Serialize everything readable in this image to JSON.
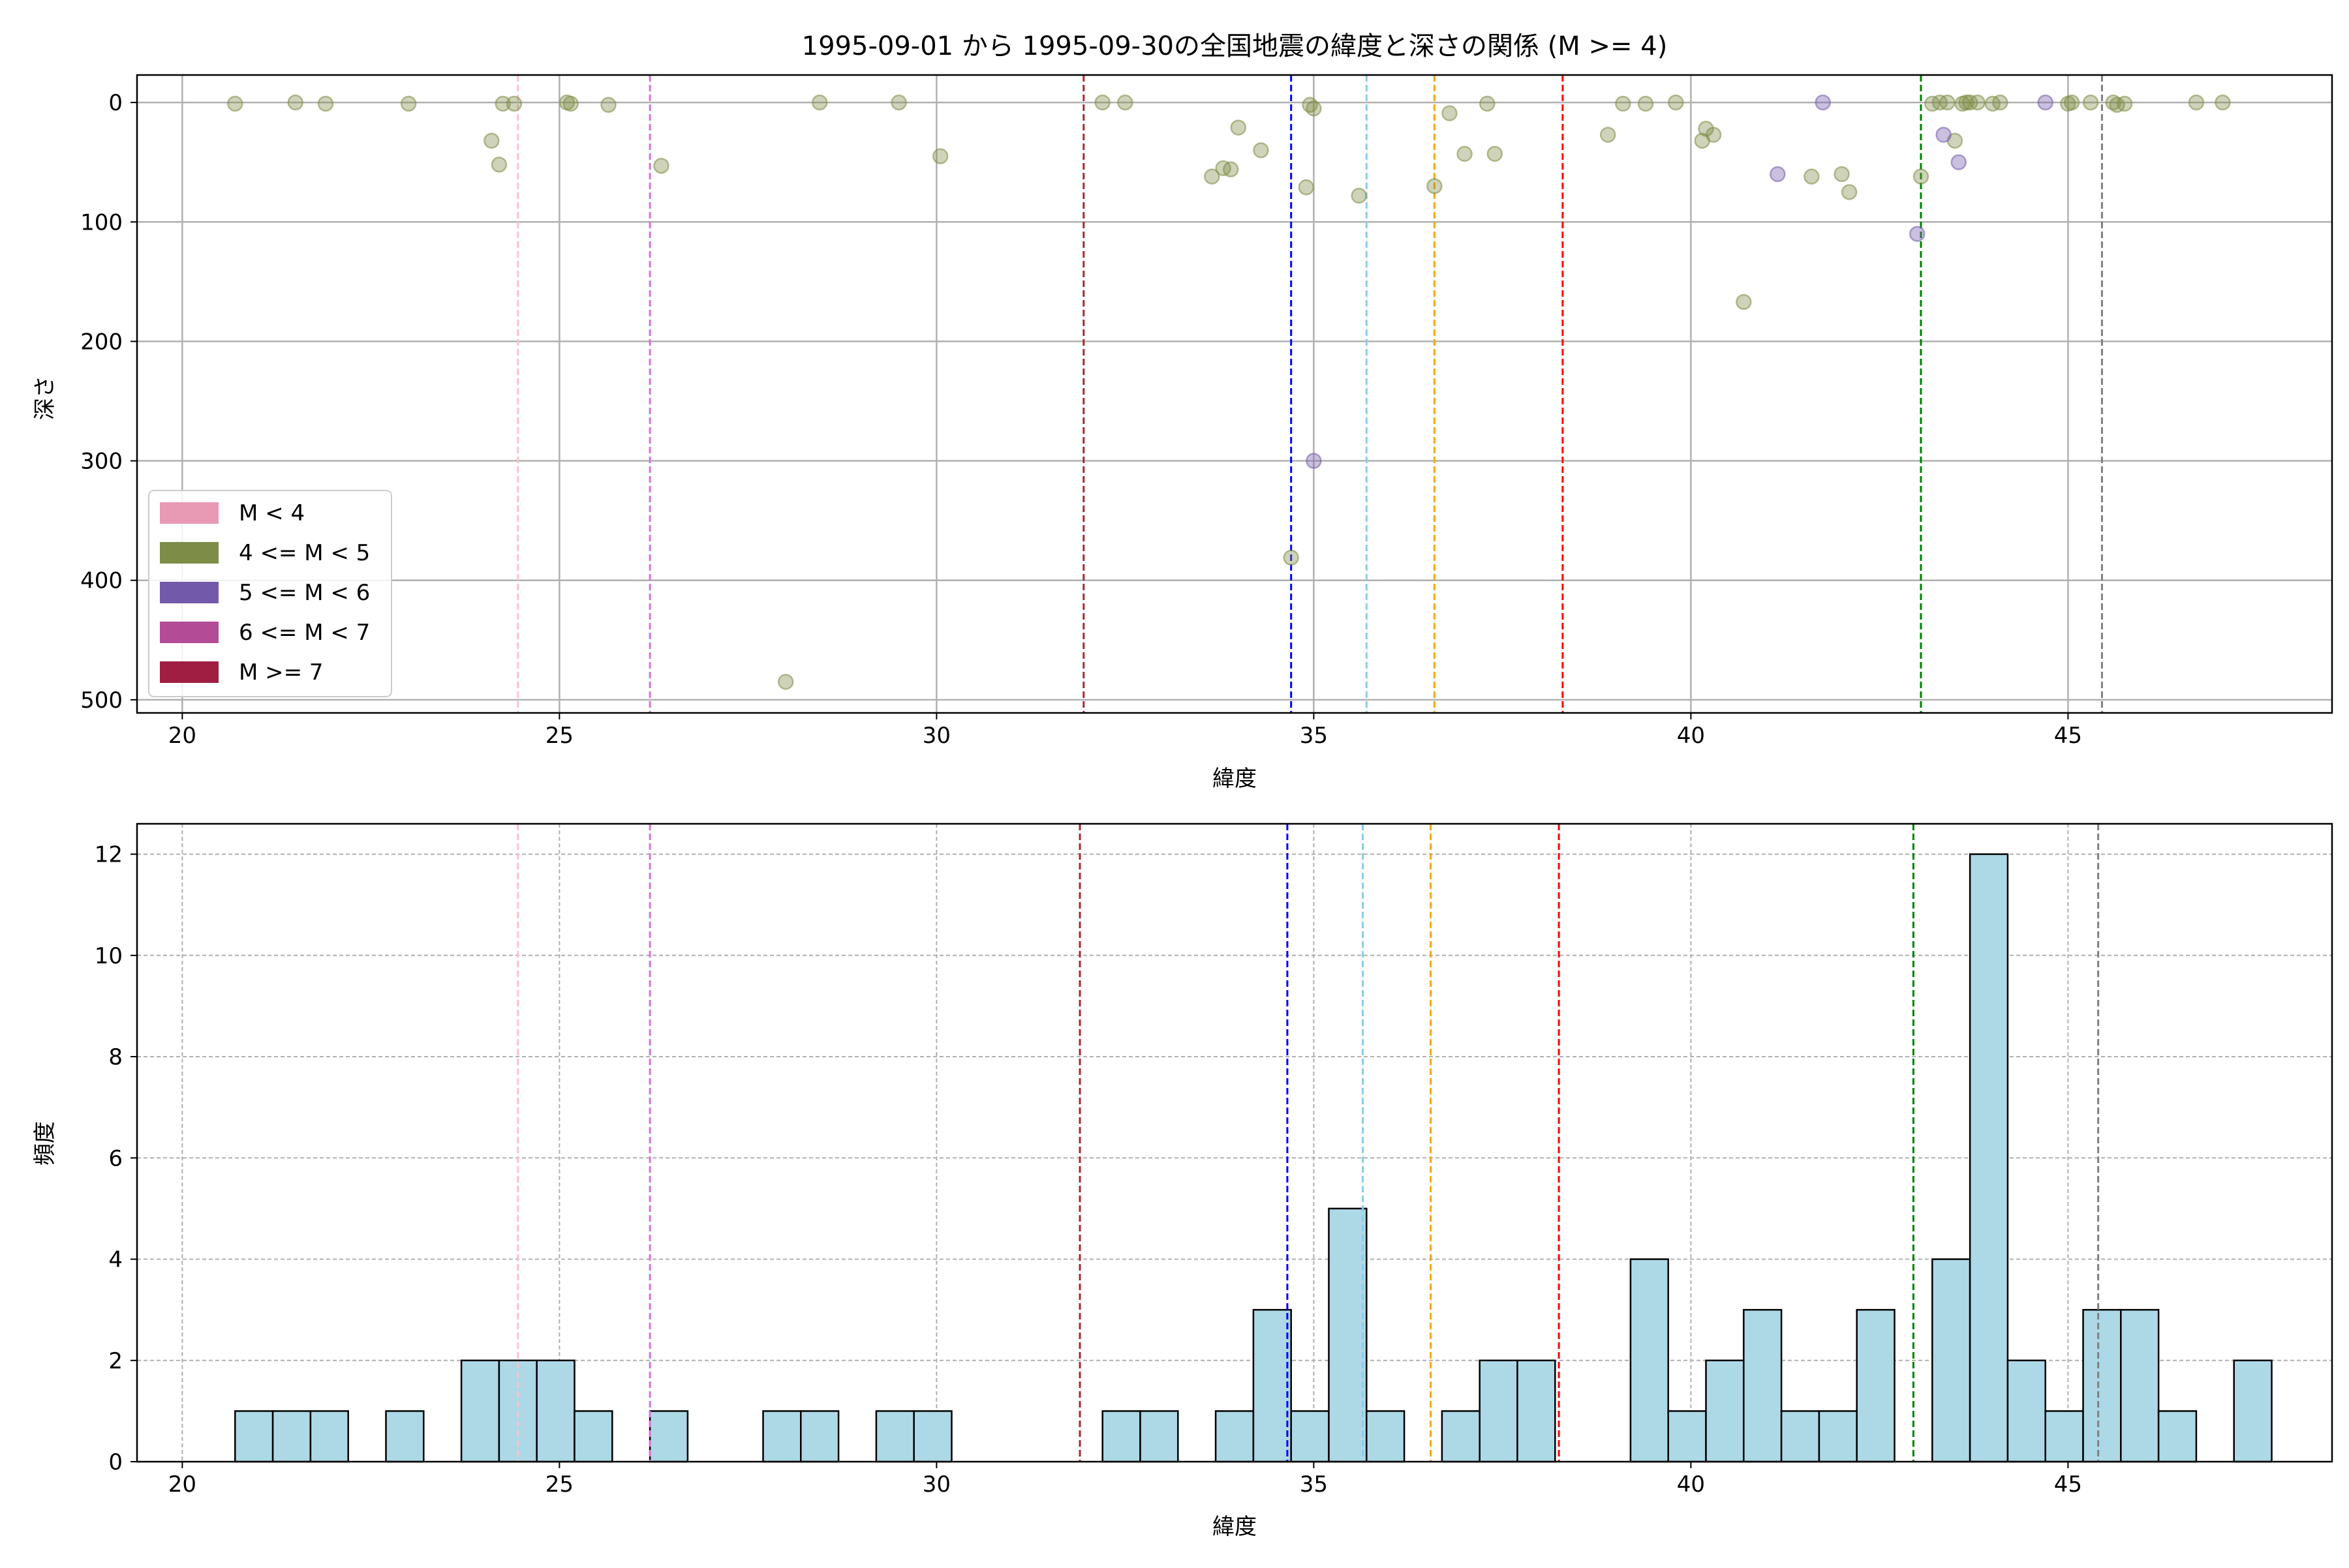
{
  "chart_data": [
    {
      "type": "scatter",
      "title": "1995-09-01 から 1995-09-30の全国地震の緯度と深さの関係 (M >= 4)",
      "xlabel": "緯度",
      "ylabel": "深さ",
      "xlim": [
        19.4,
        48.5
      ],
      "ylim": [
        511,
        -23
      ],
      "y_inverted": true,
      "xticks": [
        20,
        25,
        30,
        35,
        40,
        45
      ],
      "yticks": [
        0,
        100,
        200,
        300,
        400,
        500
      ],
      "grid": true,
      "legend_position": "lower-left",
      "legend": [
        {
          "label": "M < 4",
          "color": "#e899b4"
        },
        {
          "label": "4 <= M < 5",
          "color": "#7d8c46"
        },
        {
          "label": "5 <= M < 6",
          "color": "#7359aa"
        },
        {
          "label": "6 <= M < 7",
          "color": "#b44b96"
        },
        {
          "label": "M >= 7",
          "color": "#a01e41"
        }
      ],
      "vlines": [
        {
          "x": 24.45,
          "color": "pink"
        },
        {
          "x": 26.2,
          "color": "orchid"
        },
        {
          "x": 31.95,
          "color": "brown"
        },
        {
          "x": 34.7,
          "color": "blue"
        },
        {
          "x": 35.7,
          "color": "skyblue"
        },
        {
          "x": 36.6,
          "color": "orange"
        },
        {
          "x": 38.3,
          "color": "red"
        },
        {
          "x": 43.05,
          "color": "green"
        },
        {
          "x": 45.45,
          "color": "gray"
        }
      ],
      "series": [
        {
          "name": "4 <= M < 5",
          "color": "#7d8c46",
          "points": [
            [
              20.7,
              1
            ],
            [
              21.5,
              0
            ],
            [
              21.9,
              1
            ],
            [
              23.0,
              1
            ],
            [
              24.1,
              32
            ],
            [
              24.2,
              52
            ],
            [
              24.25,
              1
            ],
            [
              24.4,
              1
            ],
            [
              25.1,
              0
            ],
            [
              25.15,
              1
            ],
            [
              25.65,
              2
            ],
            [
              26.35,
              53
            ],
            [
              28.0,
              485
            ],
            [
              28.45,
              0
            ],
            [
              29.5,
              0
            ],
            [
              30.05,
              45
            ],
            [
              32.2,
              0
            ],
            [
              32.5,
              0
            ],
            [
              33.65,
              62
            ],
            [
              33.8,
              55
            ],
            [
              33.9,
              56
            ],
            [
              34.0,
              21
            ],
            [
              34.3,
              40
            ],
            [
              34.7,
              381
            ],
            [
              34.9,
              71
            ],
            [
              34.95,
              2
            ],
            [
              35.0,
              5
            ],
            [
              35.6,
              78
            ],
            [
              36.6,
              70
            ],
            [
              36.8,
              9
            ],
            [
              37.0,
              43
            ],
            [
              37.3,
              1
            ],
            [
              37.4,
              43
            ],
            [
              38.9,
              27
            ],
            [
              39.1,
              1
            ],
            [
              39.4,
              1
            ],
            [
              39.8,
              0
            ],
            [
              40.15,
              32
            ],
            [
              40.2,
              22
            ],
            [
              40.3,
              27
            ],
            [
              40.7,
              167
            ],
            [
              41.6,
              62
            ],
            [
              42.0,
              60
            ],
            [
              42.1,
              75
            ],
            [
              43.05,
              62
            ],
            [
              43.2,
              1
            ],
            [
              43.3,
              0
            ],
            [
              43.4,
              0
            ],
            [
              43.5,
              32
            ],
            [
              43.6,
              1
            ],
            [
              43.65,
              0
            ],
            [
              43.7,
              0
            ],
            [
              43.8,
              0
            ],
            [
              44.0,
              1
            ],
            [
              44.1,
              0
            ],
            [
              45.0,
              1
            ],
            [
              45.05,
              0
            ],
            [
              45.3,
              0
            ],
            [
              45.6,
              0
            ],
            [
              45.65,
              2
            ],
            [
              45.75,
              1
            ],
            [
              46.7,
              0
            ],
            [
              47.05,
              0
            ]
          ]
        },
        {
          "name": "5 <= M < 6",
          "color": "#7359aa",
          "points": [
            [
              35.0,
              300
            ],
            [
              41.15,
              60
            ],
            [
              41.75,
              0
            ],
            [
              43.0,
              110
            ],
            [
              43.35,
              27
            ],
            [
              43.55,
              50
            ],
            [
              44.7,
              0
            ]
          ]
        }
      ]
    },
    {
      "type": "bar",
      "subtype": "histogram",
      "xlabel": "緯度",
      "ylabel": "頻度",
      "xlim": [
        19.4,
        48.5
      ],
      "ylim": [
        0,
        12.6
      ],
      "xticks": [
        20,
        25,
        30,
        35,
        40,
        45
      ],
      "yticks": [
        0,
        2,
        4,
        6,
        8,
        10,
        12
      ],
      "grid": true,
      "bar_color": "#add8e6",
      "bin_start": 20.7,
      "bin_width": 0.5,
      "values": [
        1,
        1,
        1,
        0,
        1,
        0,
        2,
        2,
        2,
        1,
        0,
        1,
        0,
        0,
        1,
        1,
        0,
        1,
        1,
        0,
        0,
        0,
        0,
        1,
        1,
        0,
        1,
        3,
        1,
        5,
        1,
        0,
        1,
        2,
        2,
        0,
        0,
        4,
        1,
        2,
        3,
        1,
        1,
        3,
        0,
        4,
        12,
        2,
        1,
        3,
        3,
        1,
        0,
        2
      ],
      "vlines": [
        {
          "x": 24.45,
          "color": "pink"
        },
        {
          "x": 26.2,
          "color": "orchid"
        },
        {
          "x": 31.9,
          "color": "brown"
        },
        {
          "x": 34.65,
          "color": "blue"
        },
        {
          "x": 35.65,
          "color": "skyblue"
        },
        {
          "x": 36.55,
          "color": "orange"
        },
        {
          "x": 38.25,
          "color": "red"
        },
        {
          "x": 42.95,
          "color": "green"
        },
        {
          "x": 45.4,
          "color": "gray"
        }
      ]
    }
  ]
}
